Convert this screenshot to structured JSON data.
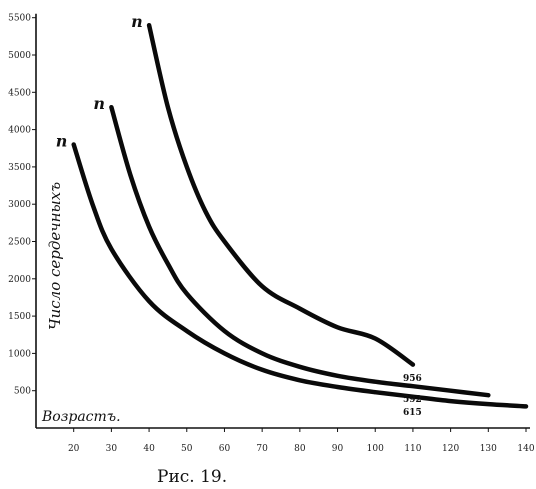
{
  "chart_data": {
    "type": "line",
    "title": "",
    "xlabel": "Возрастъ.",
    "ylabel": "Число сердечныхъ",
    "caption": "Рис. 19.",
    "xlim": [
      10,
      140
    ],
    "ylim": [
      0,
      5500
    ],
    "x_ticks": [
      20,
      30,
      40,
      50,
      60,
      70,
      80,
      90,
      100,
      110,
      120,
      130,
      140
    ],
    "y_ticks": [
      500,
      1000,
      1500,
      2000,
      2500,
      3000,
      3500,
      4000,
      4500,
      5000,
      5500
    ],
    "grid": false,
    "series": [
      {
        "name": "",
        "start_label": "n",
        "end_label": "615",
        "points": [
          [
            20,
            3800
          ],
          [
            25,
            3000
          ],
          [
            30,
            2400
          ],
          [
            40,
            1700
          ],
          [
            50,
            1300
          ],
          [
            60,
            1000
          ],
          [
            70,
            780
          ],
          [
            80,
            640
          ],
          [
            90,
            550
          ],
          [
            100,
            480
          ],
          [
            110,
            420
          ],
          [
            120,
            360
          ],
          [
            130,
            320
          ],
          [
            140,
            290
          ]
        ]
      },
      {
        "name": "",
        "start_label": "n",
        "end_label": "592",
        "points": [
          [
            30,
            4300
          ],
          [
            35,
            3400
          ],
          [
            40,
            2700
          ],
          [
            45,
            2200
          ],
          [
            50,
            1800
          ],
          [
            60,
            1300
          ],
          [
            70,
            1000
          ],
          [
            80,
            820
          ],
          [
            90,
            700
          ],
          [
            100,
            620
          ],
          [
            110,
            560
          ],
          [
            120,
            500
          ],
          [
            130,
            440
          ]
        ]
      },
      {
        "name": "",
        "start_label": "n",
        "end_label": "956",
        "points": [
          [
            40,
            5400
          ],
          [
            45,
            4300
          ],
          [
            50,
            3500
          ],
          [
            55,
            2900
          ],
          [
            60,
            2500
          ],
          [
            70,
            1900
          ],
          [
            80,
            1600
          ],
          [
            90,
            1350
          ],
          [
            100,
            1200
          ],
          [
            110,
            850
          ]
        ]
      }
    ]
  }
}
